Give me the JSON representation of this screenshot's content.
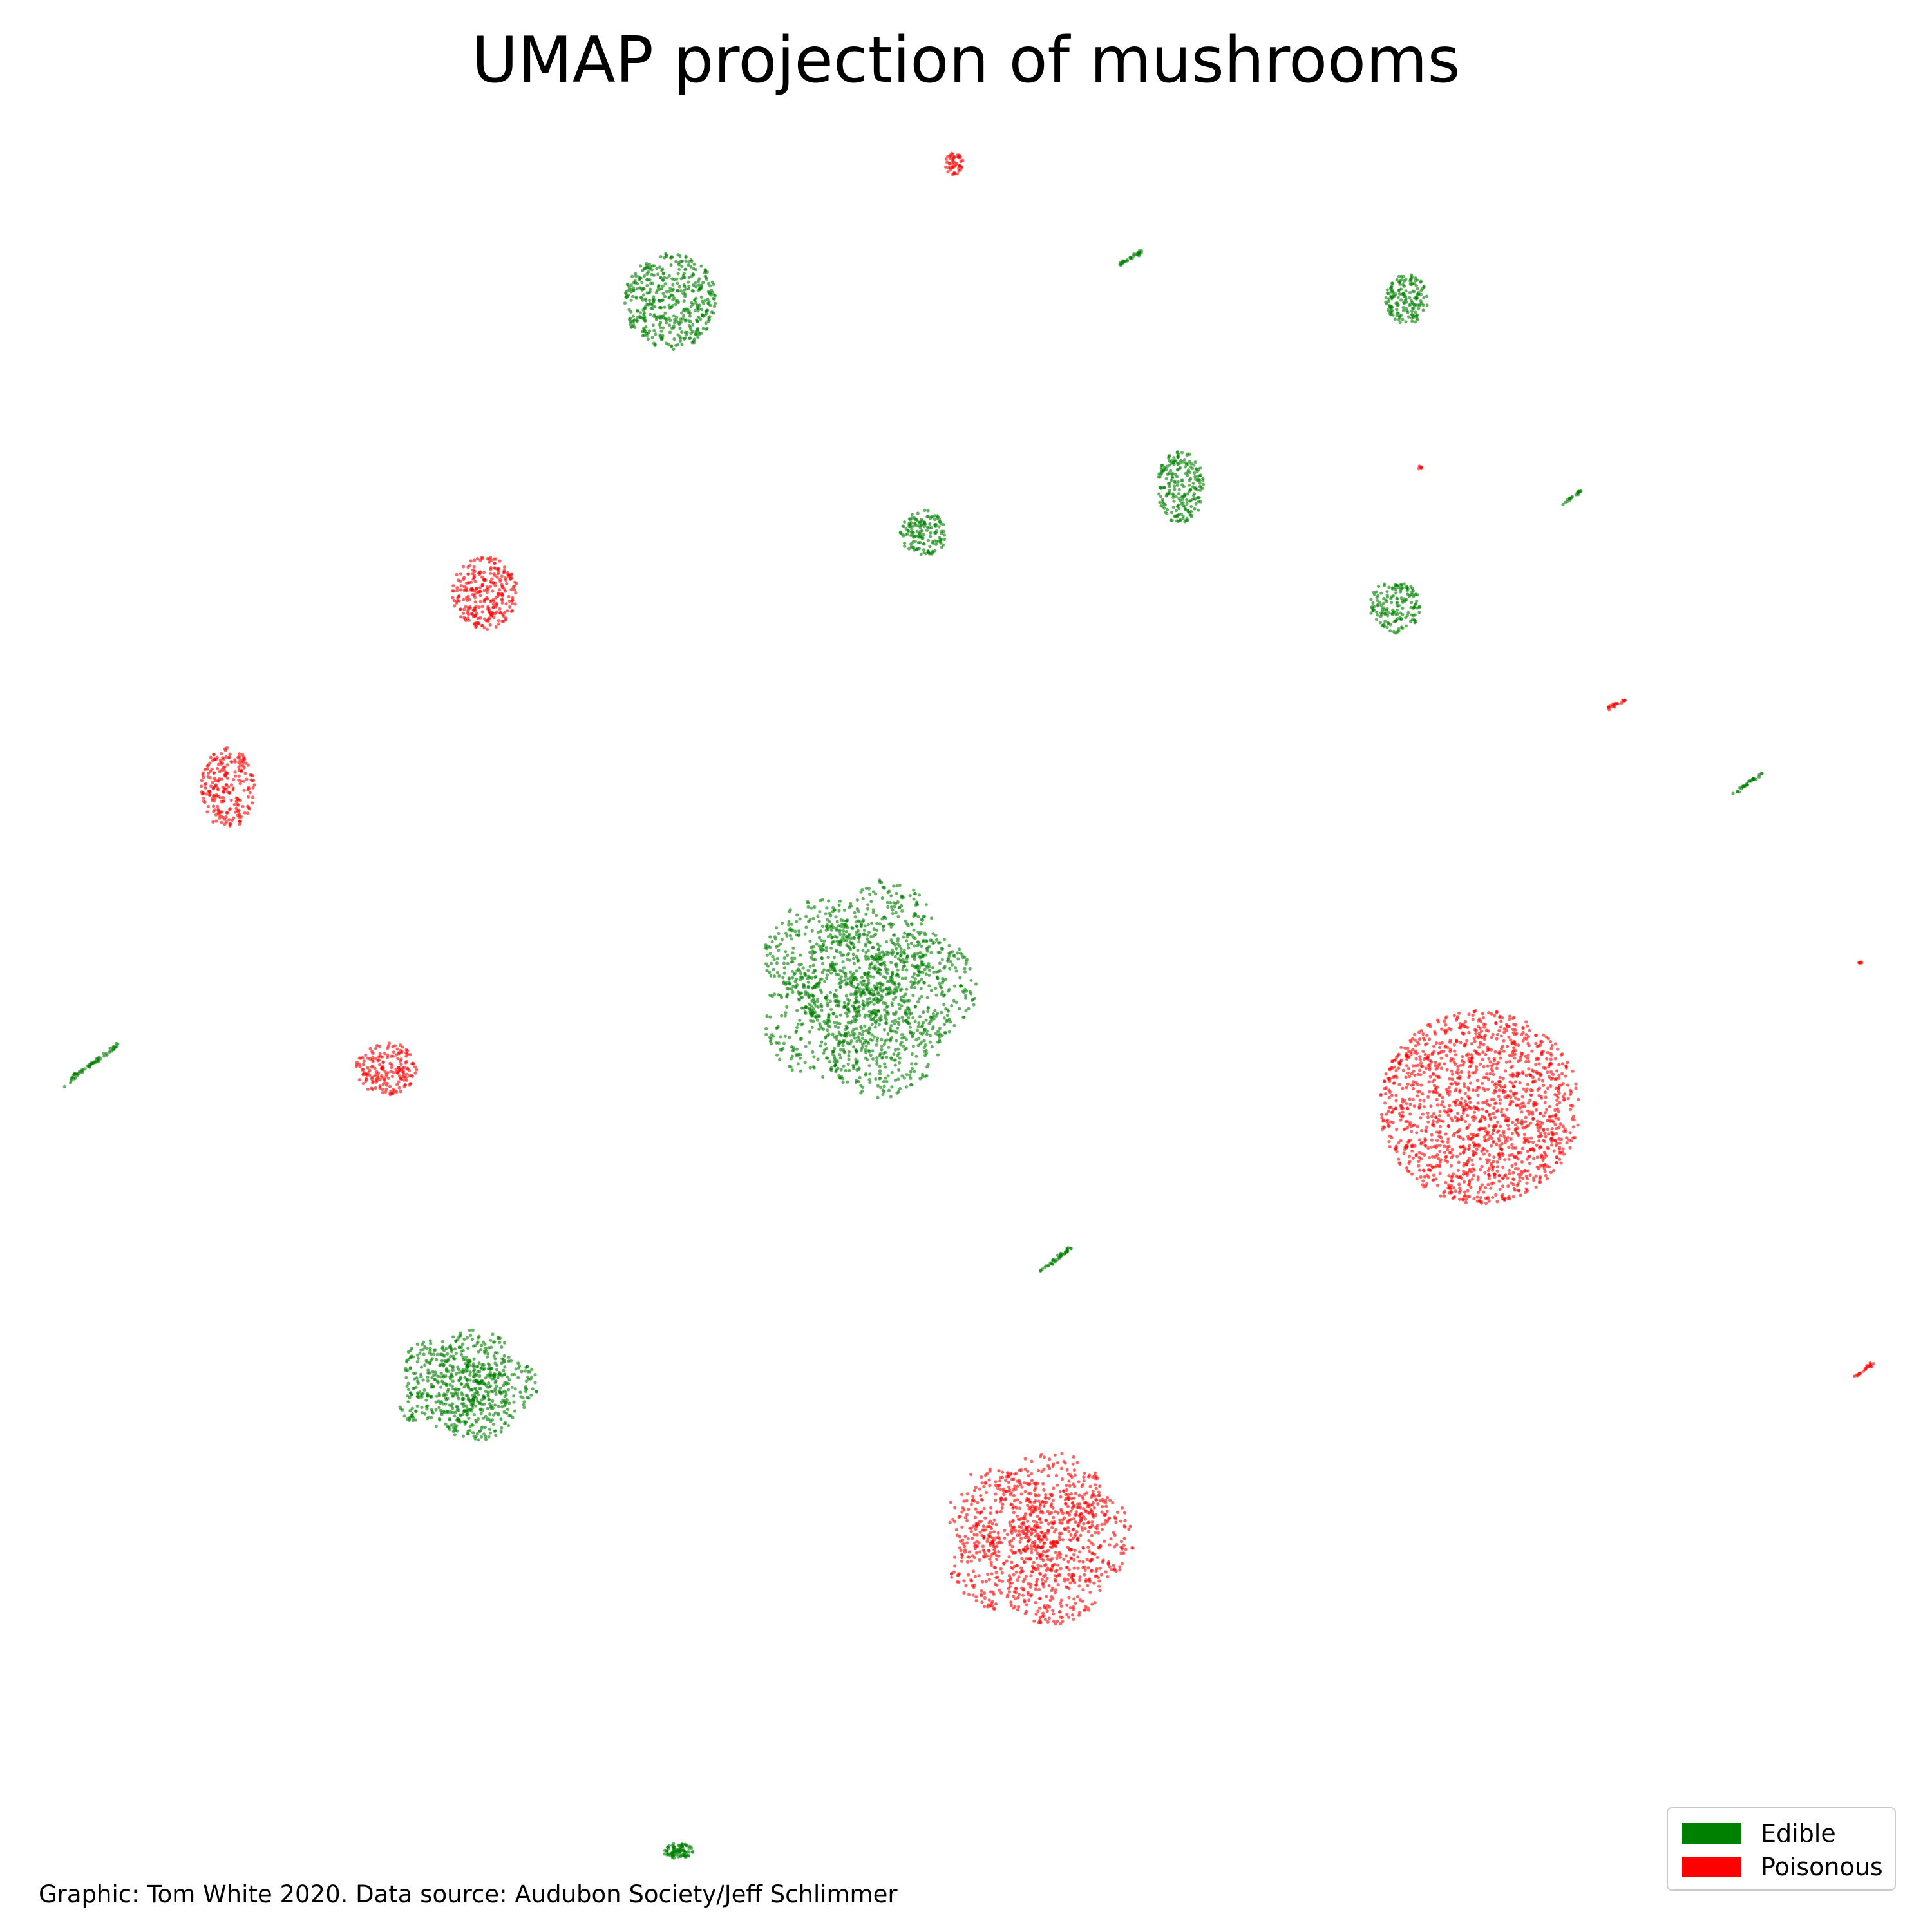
{
  "chart_data": {
    "type": "scatter",
    "title": "UMAP projection of mushrooms",
    "xlabel": "",
    "ylabel": "",
    "axes_visible": false,
    "grid": false,
    "legend_position": "bottom-right",
    "legend": [
      {
        "name": "Edible",
        "color": "#008000"
      },
      {
        "name": "Poisonous",
        "color": "#ff0000"
      }
    ],
    "series": [
      {
        "name": "Edible",
        "color": "#008000",
        "clusters": [
          {
            "center": [
              0.448,
              0.512
            ],
            "spread": [
              0.055,
              0.055
            ],
            "points": 1600,
            "shape": "flower"
          },
          {
            "center": [
              0.241,
              0.717
            ],
            "spread": [
              0.036,
              0.028
            ],
            "points": 700,
            "shape": "flower"
          },
          {
            "center": [
              0.347,
              0.156
            ],
            "spread": [
              0.024,
              0.025
            ],
            "points": 450,
            "shape": "blob"
          },
          {
            "center": [
              0.728,
              0.155
            ],
            "spread": [
              0.011,
              0.013
            ],
            "points": 160,
            "shape": "blob"
          },
          {
            "center": [
              0.611,
              0.252
            ],
            "spread": [
              0.012,
              0.019
            ],
            "points": 220,
            "shape": "blob"
          },
          {
            "center": [
              0.478,
              0.276
            ],
            "spread": [
              0.012,
              0.012
            ],
            "points": 150,
            "shape": "blob"
          },
          {
            "center": [
              0.722,
              0.314
            ],
            "spread": [
              0.013,
              0.014
            ],
            "points": 160,
            "shape": "blob"
          },
          {
            "center": [
              0.351,
              0.958
            ],
            "spread": [
              0.008,
              0.004
            ],
            "points": 90,
            "shape": "blob"
          },
          {
            "center": [
              0.586,
              0.133
            ],
            "spread": [
              0.004,
              0.003
            ],
            "points": 30,
            "shape": "streak"
          },
          {
            "center": [
              0.814,
              0.257
            ],
            "spread": [
              0.003,
              0.003
            ],
            "points": 20,
            "shape": "streak"
          },
          {
            "center": [
              0.904,
              0.406
            ],
            "spread": [
              0.005,
              0.005
            ],
            "points": 30,
            "shape": "streak"
          },
          {
            "center": [
              0.047,
              0.551
            ],
            "spread": [
              0.009,
              0.009
            ],
            "points": 60,
            "shape": "streak"
          },
          {
            "center": [
              0.545,
              0.653
            ],
            "spread": [
              0.006,
              0.006
            ],
            "points": 40,
            "shape": "streak"
          }
        ]
      },
      {
        "name": "Poisonous",
        "color": "#ff0000",
        "clusters": [
          {
            "center": [
              0.766,
              0.573
            ],
            "spread": [
              0.052,
              0.05
            ],
            "points": 1500,
            "shape": "blob"
          },
          {
            "center": [
              0.537,
              0.796
            ],
            "spread": [
              0.048,
              0.044
            ],
            "points": 1100,
            "shape": "flower"
          },
          {
            "center": [
              0.251,
              0.307
            ],
            "spread": [
              0.017,
              0.019
            ],
            "points": 280,
            "shape": "blob"
          },
          {
            "center": [
              0.118,
              0.408
            ],
            "spread": [
              0.014,
              0.021
            ],
            "points": 230,
            "shape": "blob"
          },
          {
            "center": [
              0.2,
              0.553
            ],
            "spread": [
              0.016,
              0.014
            ],
            "points": 190,
            "shape": "blob"
          },
          {
            "center": [
              0.494,
              0.085
            ],
            "spread": [
              0.005,
              0.006
            ],
            "points": 50,
            "shape": "blob"
          },
          {
            "center": [
              0.735,
              0.242
            ],
            "spread": [
              0.001,
              0.001
            ],
            "points": 5,
            "shape": "blob"
          },
          {
            "center": [
              0.837,
              0.364
            ],
            "spread": [
              0.003,
              0.002
            ],
            "points": 20,
            "shape": "streak"
          },
          {
            "center": [
              0.963,
              0.498
            ],
            "spread": [
              0.001,
              0.001
            ],
            "points": 5,
            "shape": "blob"
          },
          {
            "center": [
              0.965,
              0.709
            ],
            "spread": [
              0.003,
              0.003
            ],
            "points": 20,
            "shape": "streak"
          }
        ]
      }
    ]
  },
  "credit": "Graphic: Tom White 2020. Data source: Audubon Society/Jeff Schlimmer"
}
